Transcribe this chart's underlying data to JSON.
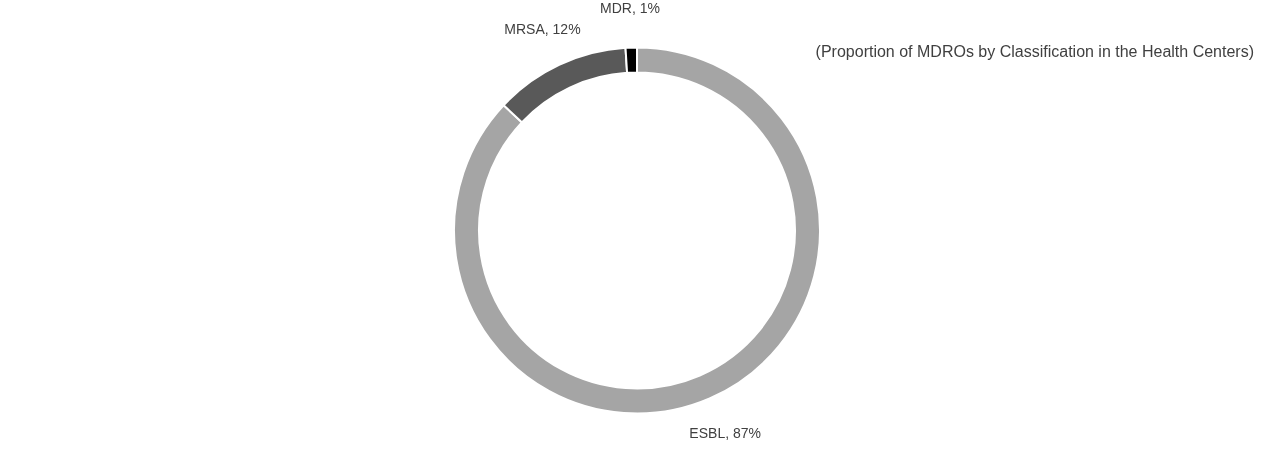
{
  "chart_data": {
    "type": "donut",
    "title": "(Proportion of MDROs by Classification in the Health Centers)",
    "categories": [
      "ESBL",
      "MRSA",
      "MDR"
    ],
    "values": [
      87,
      12,
      1
    ],
    "value_labels": [
      "87%",
      "12%",
      "1%"
    ],
    "colors": [
      "#a5a5a5",
      "#595959",
      "#000000"
    ],
    "legend": false
  }
}
